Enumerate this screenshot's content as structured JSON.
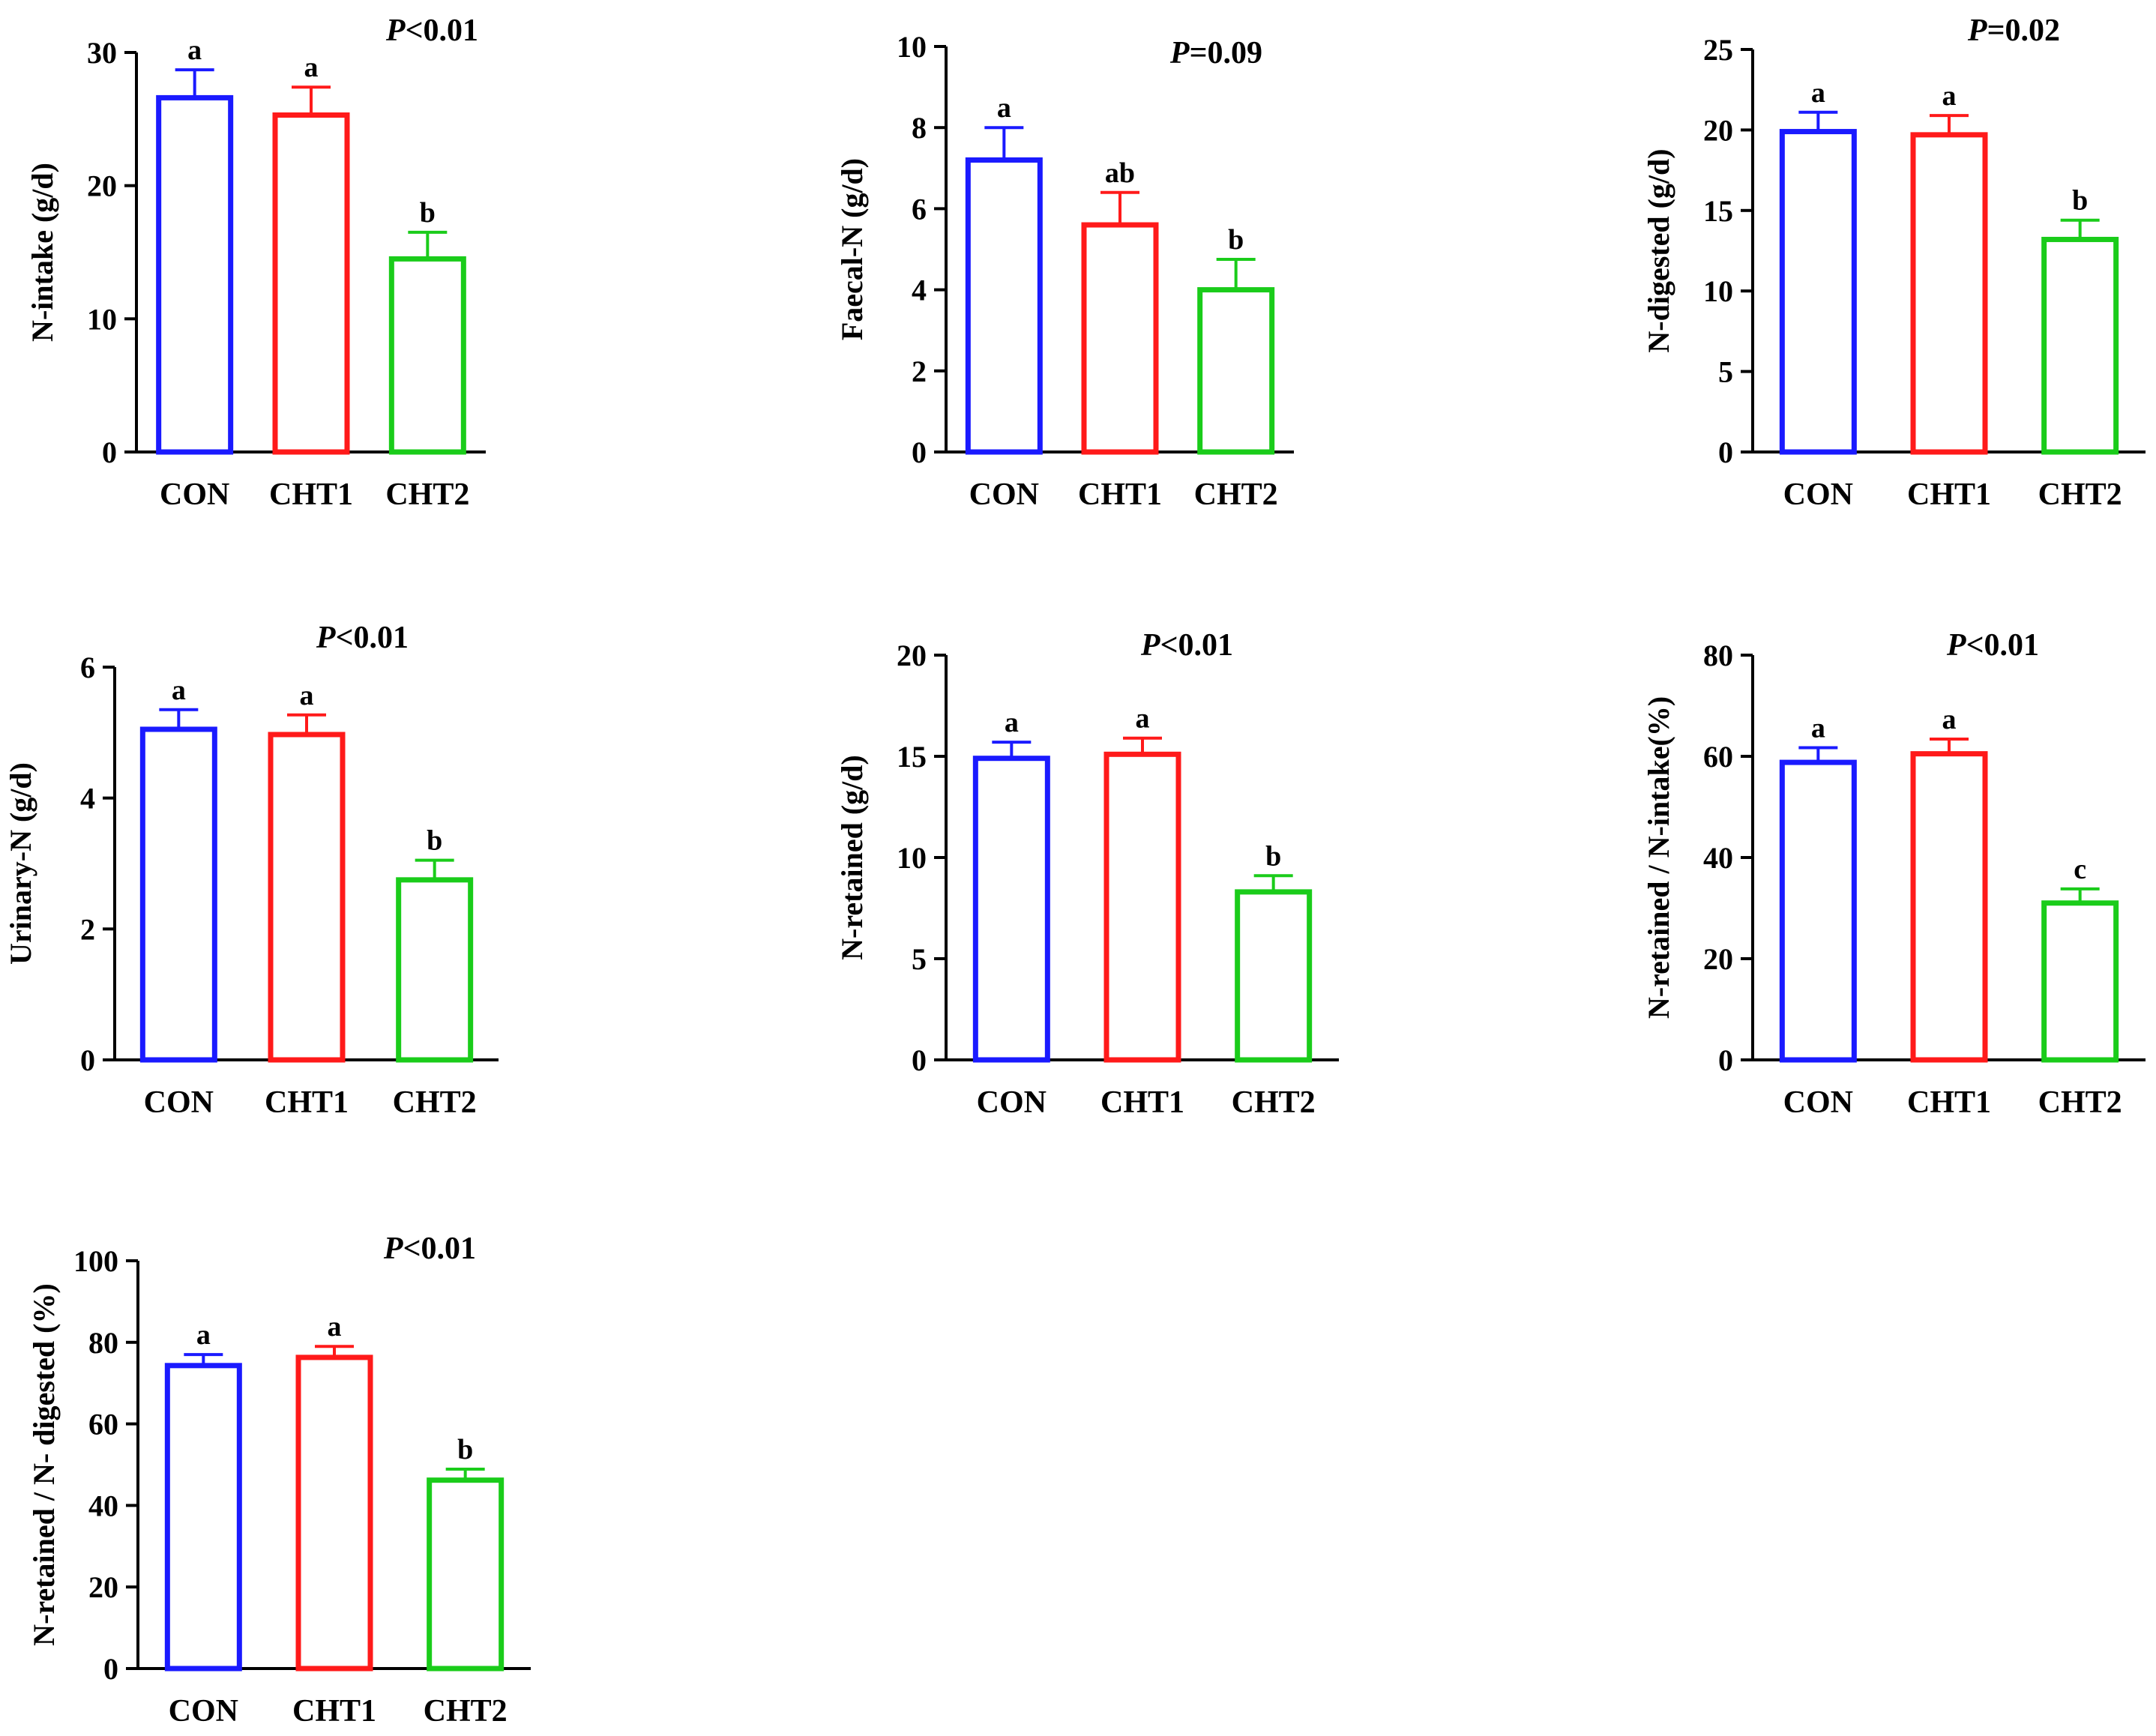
{
  "colors": {
    "CON": "#1a1aff",
    "CHT1": "#ff1a1a",
    "CHT2": "#1acc1a",
    "axis": "#000000"
  },
  "chart_data": [
    {
      "type": "bar",
      "ylabel": "N-intake (g/d)",
      "p_prefix": "P",
      "p_suffix": "<0.01",
      "categories": [
        "CON",
        "CHT1",
        "CHT2"
      ],
      "values": [
        26.6,
        25.3,
        14.5
      ],
      "errors": [
        2.1,
        2.1,
        2.0
      ],
      "letters": [
        "a",
        "a",
        "b"
      ],
      "ylim": [
        0,
        30
      ],
      "yticks": [
        0,
        10,
        20,
        30
      ]
    },
    {
      "type": "bar",
      "ylabel": "Faecal-N (g/d)",
      "p_prefix": "P",
      "p_suffix": "=0.09",
      "categories": [
        "CON",
        "CHT1",
        "CHT2"
      ],
      "values": [
        7.2,
        5.6,
        4.0
      ],
      "errors": [
        0.8,
        0.8,
        0.75
      ],
      "letters": [
        "a",
        "ab",
        "b"
      ],
      "ylim": [
        0,
        10
      ],
      "yticks": [
        0,
        2,
        4,
        6,
        8,
        10
      ]
    },
    {
      "type": "bar",
      "ylabel": "N-digested (g/d)",
      "p_prefix": "P",
      "p_suffix": "=0.02",
      "categories": [
        "CON",
        "CHT1",
        "CHT2"
      ],
      "values": [
        19.9,
        19.7,
        13.2
      ],
      "errors": [
        1.2,
        1.2,
        1.2
      ],
      "letters": [
        "a",
        "a",
        "b"
      ],
      "ylim": [
        0,
        25
      ],
      "yticks": [
        0,
        5,
        10,
        15,
        20,
        25
      ]
    },
    {
      "type": "bar",
      "ylabel": "Urinary-N (g/d)",
      "p_prefix": "P",
      "p_suffix": "<0.01",
      "categories": [
        "CON",
        "CHT1",
        "CHT2"
      ],
      "values": [
        5.05,
        4.97,
        2.75
      ],
      "errors": [
        0.3,
        0.3,
        0.3
      ],
      "letters": [
        "a",
        "a",
        "b"
      ],
      "ylim": [
        0,
        6
      ],
      "yticks": [
        0,
        2,
        4,
        6
      ]
    },
    {
      "type": "bar",
      "ylabel": "N-retained (g/d)",
      "p_prefix": "P",
      "p_suffix": "<0.01",
      "categories": [
        "CON",
        "CHT1",
        "CHT2"
      ],
      "values": [
        14.9,
        15.1,
        8.3
      ],
      "errors": [
        0.8,
        0.8,
        0.8
      ],
      "letters": [
        "a",
        "a",
        "b"
      ],
      "ylim": [
        0,
        20
      ],
      "yticks": [
        0,
        5,
        10,
        15,
        20
      ]
    },
    {
      "type": "bar",
      "ylabel": "N-retained / N-intake(%)",
      "p_prefix": "P",
      "p_suffix": "<0.01",
      "categories": [
        "CON",
        "CHT1",
        "CHT2"
      ],
      "values": [
        58.8,
        60.5,
        31.0
      ],
      "errors": [
        2.9,
        2.9,
        2.8
      ],
      "letters": [
        "a",
        "a",
        "c"
      ],
      "ylim": [
        0,
        80
      ],
      "yticks": [
        0,
        20,
        40,
        60,
        80
      ]
    },
    {
      "type": "bar",
      "ylabel": "N-retained / N- digested (%)",
      "p_prefix": "P",
      "p_suffix": "<0.01",
      "categories": [
        "CON",
        "CHT1",
        "CHT2"
      ],
      "values": [
        74.3,
        76.3,
        46.2
      ],
      "errors": [
        2.7,
        2.7,
        2.7
      ],
      "letters": [
        "a",
        "a",
        "b"
      ],
      "ylim": [
        0,
        100
      ],
      "yticks": [
        0,
        20,
        40,
        60,
        80,
        100
      ]
    }
  ]
}
